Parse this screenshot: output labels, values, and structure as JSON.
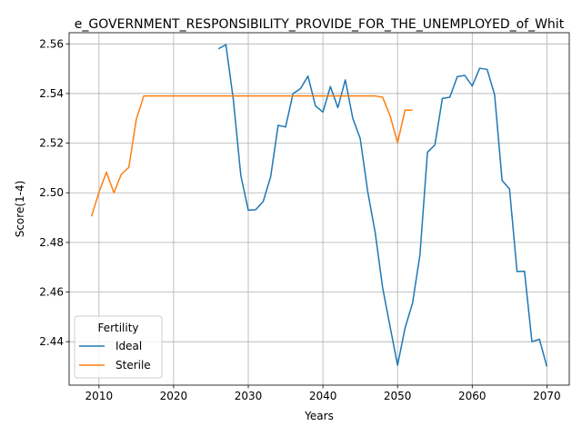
{
  "chart_data": {
    "type": "line",
    "title": "e_GOVERNMENT_RESPONSIBILITY_PROVIDE_FOR_THE_UNEMPLOYED_of_Whit",
    "xlabel": "Years",
    "ylabel": "Score(1-4)",
    "xlim": [
      2006,
      2073
    ],
    "ylim": [
      2.4225,
      2.5645
    ],
    "xticks": [
      2010,
      2020,
      2030,
      2040,
      2050,
      2060,
      2070
    ],
    "yticks": [
      2.44,
      2.46,
      2.48,
      2.5,
      2.52,
      2.54,
      2.56
    ],
    "ytick_labels": [
      "2.44",
      "2.46",
      "2.48",
      "2.50",
      "2.52",
      "2.54",
      "2.56"
    ],
    "grid": true,
    "legend": {
      "title": "Fertility",
      "placement": "lower-left"
    },
    "series": [
      {
        "name": "Ideal",
        "color": "#1f77b4",
        "x": [
          2026,
          2027,
          2028,
          2029,
          2030,
          2031,
          2032,
          2033,
          2034,
          2035,
          2036,
          2037,
          2038,
          2039,
          2040,
          2041,
          2042,
          2043,
          2044,
          2045,
          2046,
          2047,
          2048,
          2049,
          2050,
          2051,
          2052,
          2053,
          2054,
          2055,
          2056,
          2057,
          2058,
          2059,
          2060,
          2061,
          2062,
          2063,
          2064,
          2065,
          2066,
          2067,
          2068,
          2069,
          2070
        ],
        "values": [
          2.558,
          2.5597,
          2.5375,
          2.507,
          2.493,
          2.4932,
          2.4965,
          2.5065,
          2.5272,
          2.5265,
          2.54,
          2.542,
          2.547,
          2.535,
          2.5325,
          2.5428,
          2.5343,
          2.5455,
          2.53,
          2.5218,
          2.5005,
          2.484,
          2.4617,
          2.446,
          2.4305,
          2.4455,
          2.4555,
          2.475,
          2.5163,
          2.5193,
          2.538,
          2.5385,
          2.5468,
          2.5473,
          2.543,
          2.5502,
          2.5497,
          2.5395,
          2.505,
          2.5015,
          2.4683,
          2.4684,
          2.44,
          2.441,
          2.43
        ]
      },
      {
        "name": "Sterile",
        "color": "#ff7f0e",
        "x": [
          2009,
          2010,
          2011,
          2012,
          2013,
          2014,
          2015,
          2016,
          2017,
          2018,
          2019,
          2020,
          2021,
          2022,
          2023,
          2024,
          2025,
          2026,
          2027,
          2028,
          2029,
          2030,
          2031,
          2032,
          2033,
          2034,
          2035,
          2036,
          2037,
          2038,
          2039,
          2040,
          2041,
          2042,
          2043,
          2044,
          2045,
          2046,
          2047,
          2048,
          2049,
          2050,
          2051,
          2052
        ],
        "values": [
          2.4905,
          2.5002,
          2.5083,
          2.5,
          2.5075,
          2.5102,
          2.5296,
          2.539,
          2.539,
          2.539,
          2.539,
          2.539,
          2.539,
          2.539,
          2.539,
          2.539,
          2.539,
          2.539,
          2.539,
          2.539,
          2.539,
          2.539,
          2.539,
          2.539,
          2.539,
          2.539,
          2.539,
          2.539,
          2.539,
          2.539,
          2.539,
          2.539,
          2.539,
          2.539,
          2.539,
          2.539,
          2.539,
          2.539,
          2.539,
          2.5385,
          2.531,
          2.5202,
          2.5333,
          2.5333
        ]
      }
    ]
  }
}
